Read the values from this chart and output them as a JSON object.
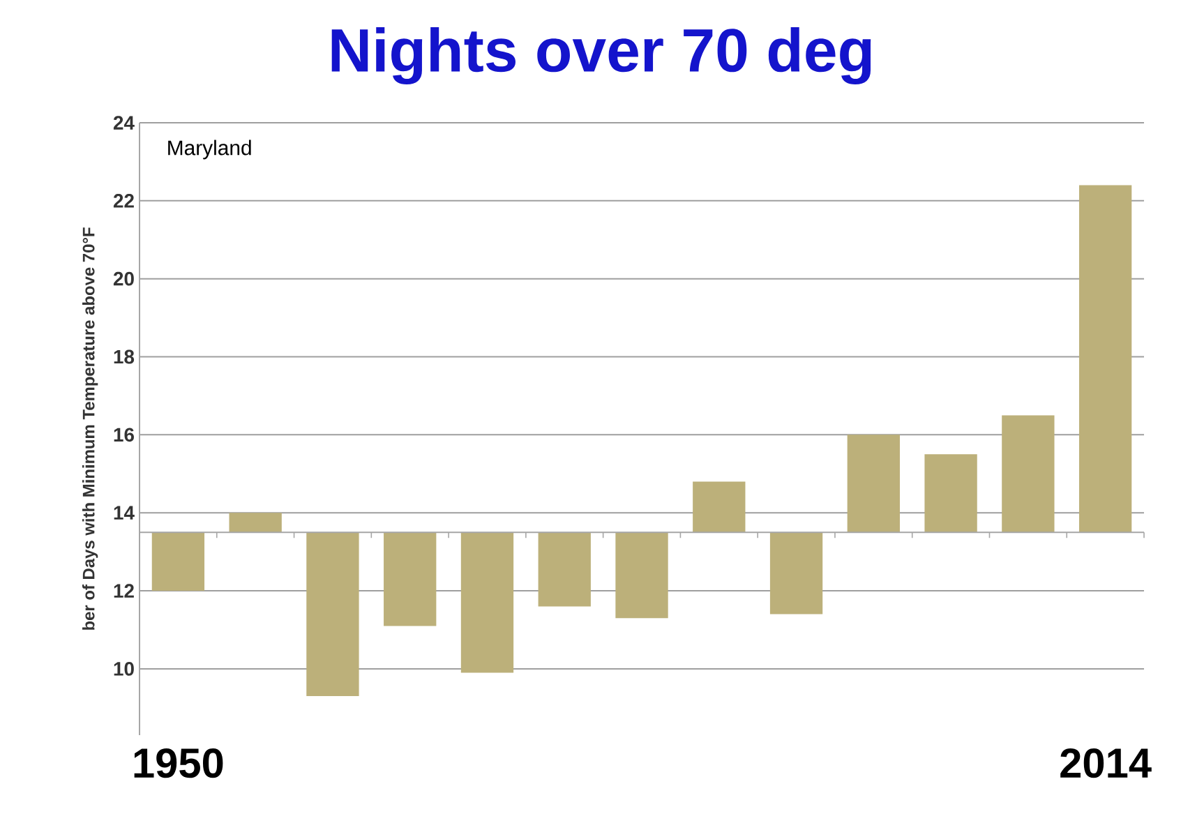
{
  "chart_data": {
    "type": "bar",
    "title": "Nights over 70 deg",
    "ylabel": "ber of Days with Minimum Temperature above 70°F",
    "annotations": [
      "Maryland"
    ],
    "categories": [
      "1950",
      null,
      null,
      null,
      null,
      null,
      null,
      null,
      null,
      null,
      null,
      null,
      "2014"
    ],
    "base": [
      13.5,
      13.5,
      13.5,
      13.5,
      13.5,
      13.5,
      13.5,
      13.5,
      13.5,
      13.5,
      13.5,
      13.5,
      13.5
    ],
    "values": [
      -1.5,
      0.5,
      -4.2,
      -2.4,
      -3.6,
      -1.9,
      -2.2,
      1.3,
      -2.1,
      2.5,
      2.0,
      3.0,
      8.9
    ],
    "color": "#bcb07a",
    "ref_lines": [
      {
        "axis": "y",
        "value": 13.5,
        "color": "#a6a6a6"
      }
    ],
    "ylim": [
      8.3,
      24
    ],
    "yticks": [
      10,
      12,
      14,
      16,
      18,
      20,
      22,
      24
    ],
    "grid": "y"
  }
}
